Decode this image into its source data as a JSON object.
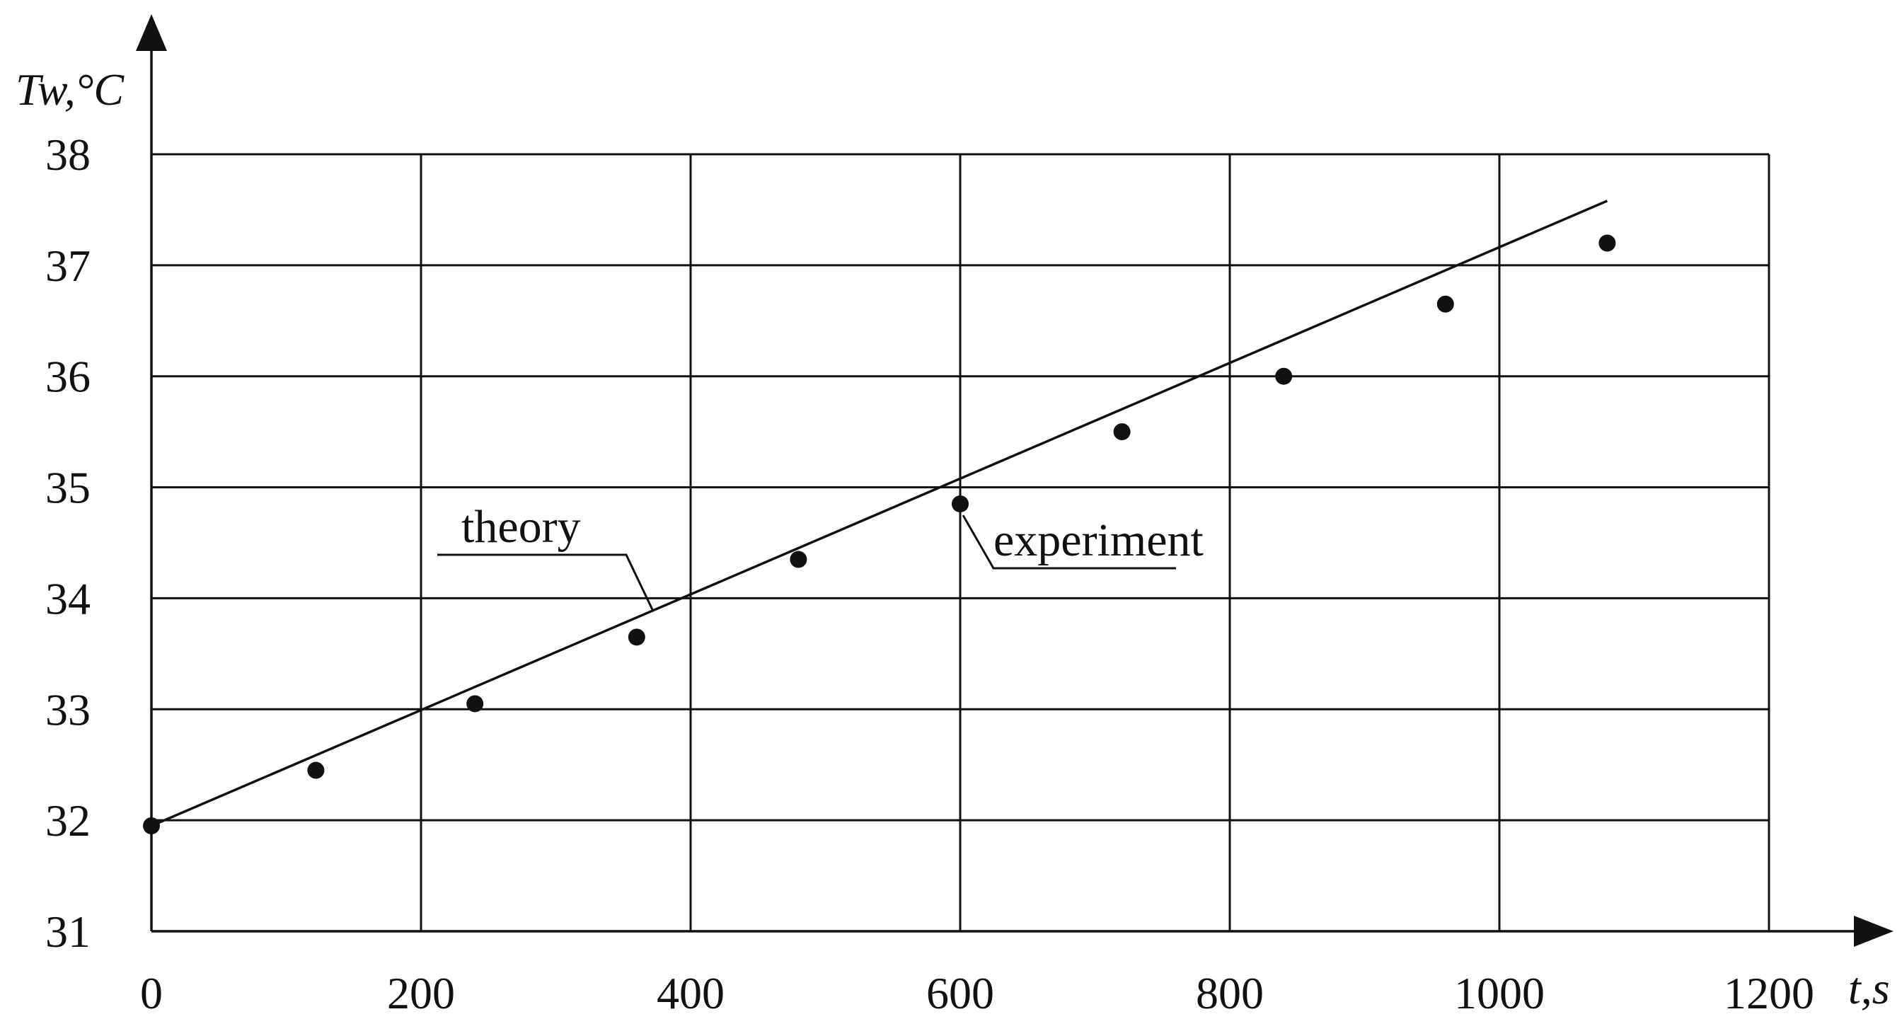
{
  "chart_data": {
    "type": "scatter",
    "title": "",
    "xlabel": "t,s",
    "ylabel": "Tw,°C",
    "xlim": [
      0,
      1200
    ],
    "ylim": [
      31,
      38
    ],
    "grid": true,
    "x_ticks": [
      0,
      200,
      400,
      600,
      800,
      1000,
      1200
    ],
    "y_ticks": [
      31,
      32,
      33,
      34,
      35,
      36,
      37,
      38
    ],
    "series": [
      {
        "name": "experiment",
        "kind": "scatter",
        "x": [
          0,
          122,
          240,
          360,
          480,
          600,
          720,
          840,
          960,
          1080
        ],
        "y": [
          31.95,
          32.45,
          33.05,
          33.65,
          34.35,
          34.85,
          35.5,
          36.0,
          36.65,
          37.2
        ]
      },
      {
        "name": "theory",
        "kind": "line",
        "x": [
          0,
          1080
        ],
        "y": [
          31.95,
          37.58
        ]
      }
    ],
    "annotations": [
      {
        "text": "theory",
        "target_series": "theory"
      },
      {
        "text": "experiment",
        "target_series": "experiment"
      }
    ]
  }
}
